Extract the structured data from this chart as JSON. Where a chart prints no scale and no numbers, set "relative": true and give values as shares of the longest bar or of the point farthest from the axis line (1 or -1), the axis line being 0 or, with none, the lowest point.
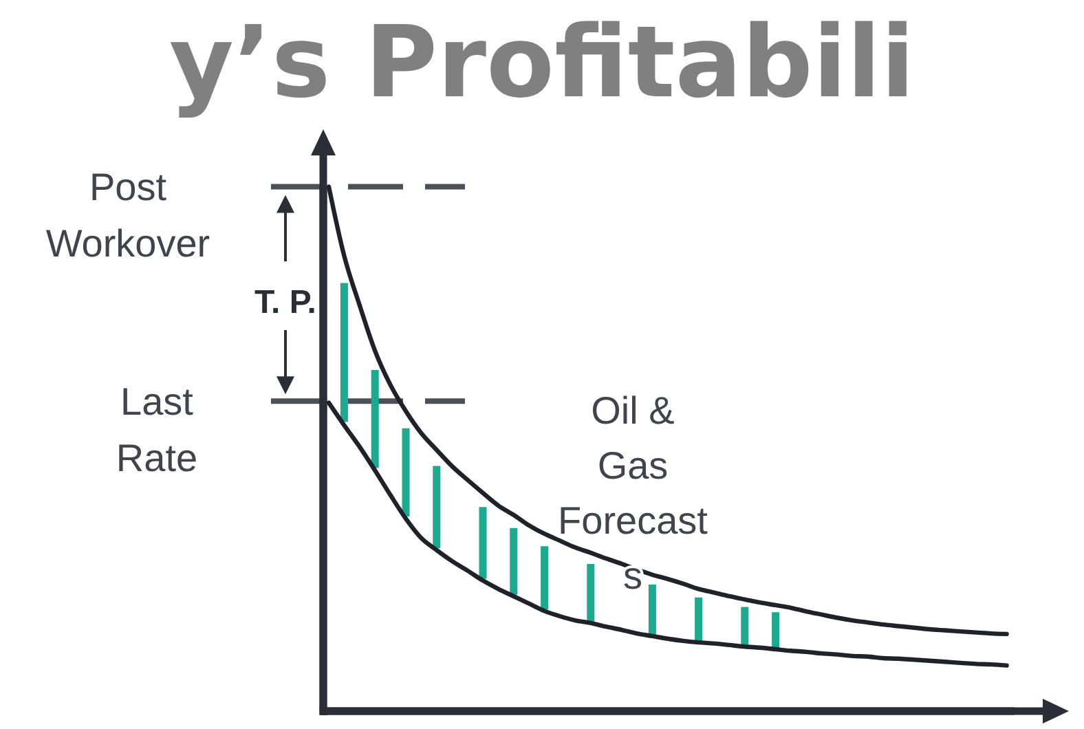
{
  "chart_data": {
    "type": "line",
    "title": "y’s Profitabili",
    "relative": true,
    "categories": [
      null,
      null,
      null,
      null,
      null,
      null,
      null,
      null,
      null,
      null,
      null,
      null,
      null,
      null,
      null,
      null,
      null,
      null,
      null,
      null,
      null,
      null,
      null,
      null,
      null,
      null,
      null,
      null,
      null,
      null,
      null,
      null,
      null,
      null,
      null,
      null,
      null,
      null,
      null,
      null,
      null,
      null,
      null,
      null,
      null
    ],
    "series": [
      {
        "color": "#1f2229",
        "values": [
          1,
          0.868,
          0.774,
          0.687,
          0.622,
          0.572,
          0.53,
          0.498,
          0.467,
          0.441,
          0.416,
          0.392,
          0.374,
          0.354,
          0.338,
          0.325,
          0.312,
          0.302,
          0.291,
          0.281,
          0.27,
          0.26,
          0.252,
          0.243,
          0.233,
          0.226,
          0.219,
          0.213,
          0.207,
          0.202,
          0.197,
          0.19,
          0.184,
          0.178,
          0.173,
          0.169,
          0.165,
          0.162,
          0.159,
          0.156,
          0.154,
          0.152,
          0.15,
          0.148,
          0.147
        ]
      },
      {
        "color": "#1f2229",
        "values": [
          0.588,
          0.545,
          0.504,
          0.459,
          0.412,
          0.367,
          0.33,
          0.307,
          0.286,
          0.268,
          0.249,
          0.233,
          0.219,
          0.205,
          0.191,
          0.181,
          0.173,
          0.168,
          0.161,
          0.155,
          0.148,
          0.143,
          0.138,
          0.134,
          0.131,
          0.129,
          0.126,
          0.123,
          0.121,
          0.118,
          0.115,
          0.113,
          0.11,
          0.108,
          0.105,
          0.104,
          0.101,
          0.1,
          0.098,
          0.096,
          0.094,
          0.092,
          0.09,
          0.089,
          0.087
        ]
      }
    ],
    "ref_lines": [
      {
        "axis": "y",
        "value": 1,
        "label": "Post Workover",
        "line_style": "dashed",
        "color": "#4b5059"
      },
      {
        "axis": "y",
        "value": 0.591,
        "label": "Last Rate",
        "line_style": "dashed",
        "color": "#4b5059"
      }
    ],
    "annotations": [
      "T. P.",
      "Oil & Gas Forecasts"
    ]
  }
}
